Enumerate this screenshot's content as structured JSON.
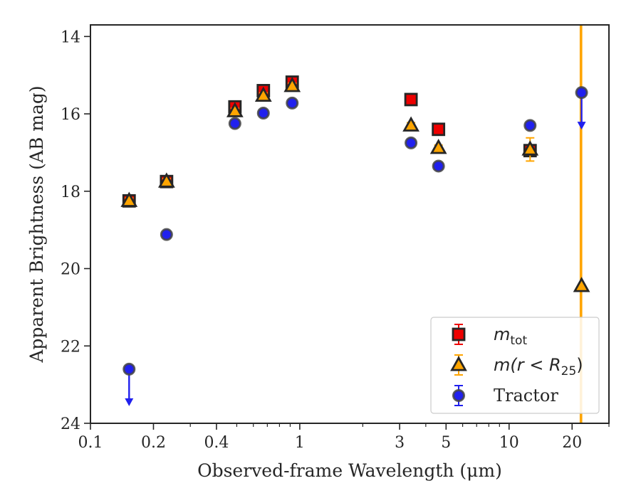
{
  "chart_data": {
    "type": "scatter",
    "title": "",
    "xlabel": "Observed-frame Wavelength (μm)",
    "ylabel": "Apparent Brightness (AB mag)",
    "xscale": "log",
    "xlim": [
      0.1,
      30
    ],
    "ylim": [
      24,
      13.7
    ],
    "y_inverted": true,
    "grid": false,
    "legend_position": "lower-right",
    "x_tick_labels": [
      "0.1",
      "0.2",
      "0.4",
      "1",
      "3",
      "5",
      "10",
      "20"
    ],
    "y_tick_labels": [
      "14",
      "16",
      "18",
      "20",
      "22",
      "24"
    ],
    "vertical_line_x": 22,
    "series": [
      {
        "key": "mtot",
        "legend_main": "m",
        "legend_sub": "tot",
        "marker": "square",
        "face_color": "#ee0000",
        "edge_color": "#262626",
        "error_color": "#ee0000",
        "points": [
          {
            "x": 0.153,
            "y": 18.25
          },
          {
            "x": 0.231,
            "y": 17.75
          },
          {
            "x": 0.49,
            "y": 15.82
          },
          {
            "x": 0.67,
            "y": 15.4
          },
          {
            "x": 0.92,
            "y": 15.18
          },
          {
            "x": 3.4,
            "y": 15.63
          },
          {
            "x": 4.6,
            "y": 16.4
          },
          {
            "x": 12.6,
            "y": 16.95
          }
        ]
      },
      {
        "key": "mr25",
        "legend_main": "m(r < R",
        "legend_sub": "25",
        "legend_tail": ")",
        "marker": "triangle",
        "face_color": "#ffa500",
        "edge_color": "#262626",
        "error_color": "#ffa500",
        "points": [
          {
            "x": 0.153,
            "y": 18.25
          },
          {
            "x": 0.231,
            "y": 17.75
          },
          {
            "x": 0.49,
            "y": 15.93
          },
          {
            "x": 0.67,
            "y": 15.53
          },
          {
            "x": 0.92,
            "y": 15.28
          },
          {
            "x": 3.4,
            "y": 16.3
          },
          {
            "x": 4.6,
            "y": 16.88
          },
          {
            "x": 12.6,
            "y": 16.92,
            "yerr": 0.3
          },
          {
            "x": 22.2,
            "y": 20.45,
            "yerr": 10
          }
        ]
      },
      {
        "key": "tractor",
        "legend_main": "Tractor",
        "marker": "circle",
        "face_color": "#2020ee",
        "edge_color": "#444444",
        "error_color": "#2020ee",
        "points": [
          {
            "x": 0.153,
            "y": 22.6,
            "upper_limit": true
          },
          {
            "x": 0.231,
            "y": 19.12
          },
          {
            "x": 0.49,
            "y": 16.25
          },
          {
            "x": 0.67,
            "y": 15.98
          },
          {
            "x": 0.92,
            "y": 15.72
          },
          {
            "x": 3.4,
            "y": 16.75
          },
          {
            "x": 4.6,
            "y": 17.35
          },
          {
            "x": 12.6,
            "y": 16.3
          },
          {
            "x": 22.2,
            "y": 15.45,
            "upper_limit": true
          }
        ]
      }
    ]
  }
}
